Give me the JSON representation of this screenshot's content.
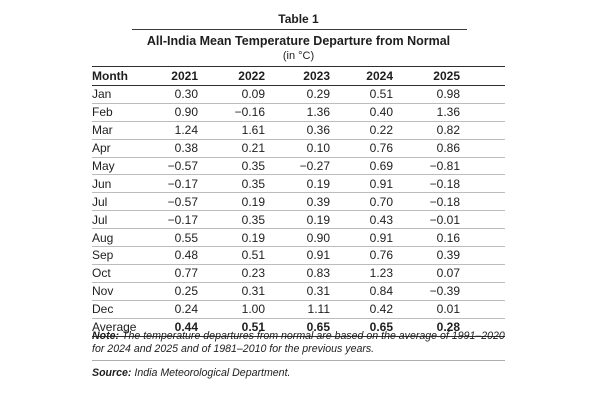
{
  "table": {
    "caption": "Table 1",
    "title": "All-India Mean Temperature Departure from Normal",
    "subtitle": "(in °C)",
    "columns": [
      "Month",
      "2021",
      "2022",
      "2023",
      "2024",
      "2025"
    ],
    "rows": [
      [
        "Jan",
        "0.30",
        "0.09",
        "0.29",
        "0.51",
        "0.98"
      ],
      [
        "Feb",
        "0.90",
        "−0.16",
        "1.36",
        "0.40",
        "1.36"
      ],
      [
        "Mar",
        "1.24",
        "1.61",
        "0.36",
        "0.22",
        "0.82"
      ],
      [
        "Apr",
        "0.38",
        "0.21",
        "0.10",
        "0.76",
        "0.86"
      ],
      [
        "May",
        "−0.57",
        "0.35",
        "−0.27",
        "0.69",
        "−0.81"
      ],
      [
        "Jun",
        "−0.17",
        "0.35",
        "0.19",
        "0.91",
        "−0.18"
      ],
      [
        "Jul",
        "−0.57",
        "0.19",
        "0.39",
        "0.70",
        "−0.18"
      ],
      [
        "Jul",
        "−0.17",
        "0.35",
        "0.19",
        "0.43",
        "−0.01"
      ],
      [
        "Aug",
        "0.55",
        "0.19",
        "0.90",
        "0.91",
        "0.16"
      ],
      [
        "Sep",
        "0.48",
        "0.51",
        "0.91",
        "0.76",
        "0.39"
      ],
      [
        "Oct",
        "0.77",
        "0.23",
        "0.83",
        "1.23",
        "0.07"
      ],
      [
        "Nov",
        "0.25",
        "0.31",
        "0.31",
        "0.84",
        "−0.39"
      ],
      [
        "Dec",
        "0.24",
        "1.00",
        "1.11",
        "0.42",
        "0.01"
      ]
    ],
    "average_row": [
      "Average",
      "0.44",
      "0.51",
      "0.65",
      "0.65",
      "0.28"
    ]
  },
  "note": {
    "label": "Note:",
    "text": "The temperature departures from normal are based on the average of 1991–2020 for 2024 and 2025 and of 1981–2010 for the previous years."
  },
  "source": {
    "label": "Source:",
    "text": "India Meteorological Department."
  },
  "colors": {
    "text": "#1e1e1e",
    "heavy_rule": "#2e2e2e",
    "light_rule": "#bcbcbc",
    "background": "#ffffff"
  }
}
